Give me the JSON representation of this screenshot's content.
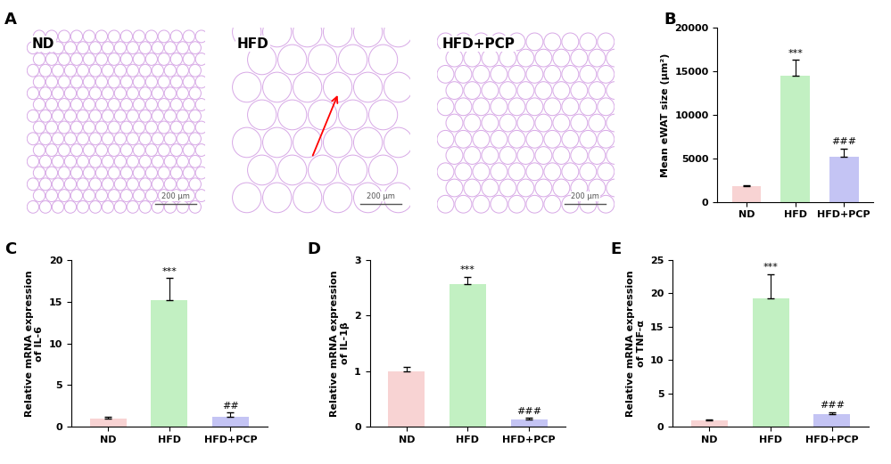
{
  "panel_labels": [
    "A",
    "B",
    "C",
    "D",
    "E"
  ],
  "images": [
    {
      "label": "ND",
      "scale_bar": "200 μm"
    },
    {
      "label": "HFD",
      "scale_bar": "200 μm"
    },
    {
      "label": "HFD+PCP",
      "scale_bar": "200 μm"
    }
  ],
  "chart_data": [
    {
      "type": "bar",
      "ylabel": "Mean eWAT size (μm²)",
      "categories": [
        "ND",
        "HFD",
        "HFD+PCP"
      ],
      "values": [
        1800,
        14500,
        5200
      ],
      "error": [
        150,
        1800,
        900
      ],
      "colors": [
        "#f8d3d3",
        "#c2f0c2",
        "#c4c4f4"
      ],
      "ylim": [
        0,
        20000
      ],
      "yticks": [
        0,
        5000,
        10000,
        15000,
        20000
      ],
      "annotations": [
        {
          "category": "HFD",
          "text": "***"
        },
        {
          "category": "HFD+PCP",
          "text": "###"
        }
      ]
    },
    {
      "type": "bar",
      "ylabel": "Relative mRNA expression\nof IL-6",
      "categories": [
        "ND",
        "HFD",
        "HFD+PCP"
      ],
      "values": [
        1.0,
        15.2,
        1.2
      ],
      "error": [
        0.2,
        2.6,
        0.5
      ],
      "colors": [
        "#f8d3d3",
        "#c2f0c2",
        "#c4c4f4"
      ],
      "ylim": [
        0,
        20
      ],
      "yticks": [
        0,
        5,
        10,
        15,
        20
      ],
      "annotations": [
        {
          "category": "HFD",
          "text": "***"
        },
        {
          "category": "HFD+PCP",
          "text": "##"
        }
      ]
    },
    {
      "type": "bar",
      "ylabel": "Relative mRNA expression\nof IL-1β",
      "categories": [
        "ND",
        "HFD",
        "HFD+PCP"
      ],
      "values": [
        1.0,
        2.57,
        0.13
      ],
      "error": [
        0.07,
        0.12,
        0.03
      ],
      "colors": [
        "#f8d3d3",
        "#c2f0c2",
        "#c4c4f4"
      ],
      "ylim": [
        0,
        3
      ],
      "yticks": [
        0,
        1,
        2,
        3
      ],
      "annotations": [
        {
          "category": "HFD",
          "text": "***"
        },
        {
          "category": "HFD+PCP",
          "text": "###"
        }
      ]
    },
    {
      "type": "bar",
      "ylabel": "Relative mRNA expression\nof TNF-α",
      "categories": [
        "ND",
        "HFD",
        "HFD+PCP"
      ],
      "values": [
        1.0,
        19.2,
        1.9
      ],
      "error": [
        0.1,
        3.6,
        0.3
      ],
      "colors": [
        "#f8d3d3",
        "#c2f0c2",
        "#c4c4f4"
      ],
      "ylim": [
        0,
        25
      ],
      "yticks": [
        0,
        5,
        10,
        15,
        20,
        25
      ],
      "annotations": [
        {
          "category": "HFD",
          "text": "***"
        },
        {
          "category": "HFD+PCP",
          "text": "###"
        }
      ]
    }
  ]
}
